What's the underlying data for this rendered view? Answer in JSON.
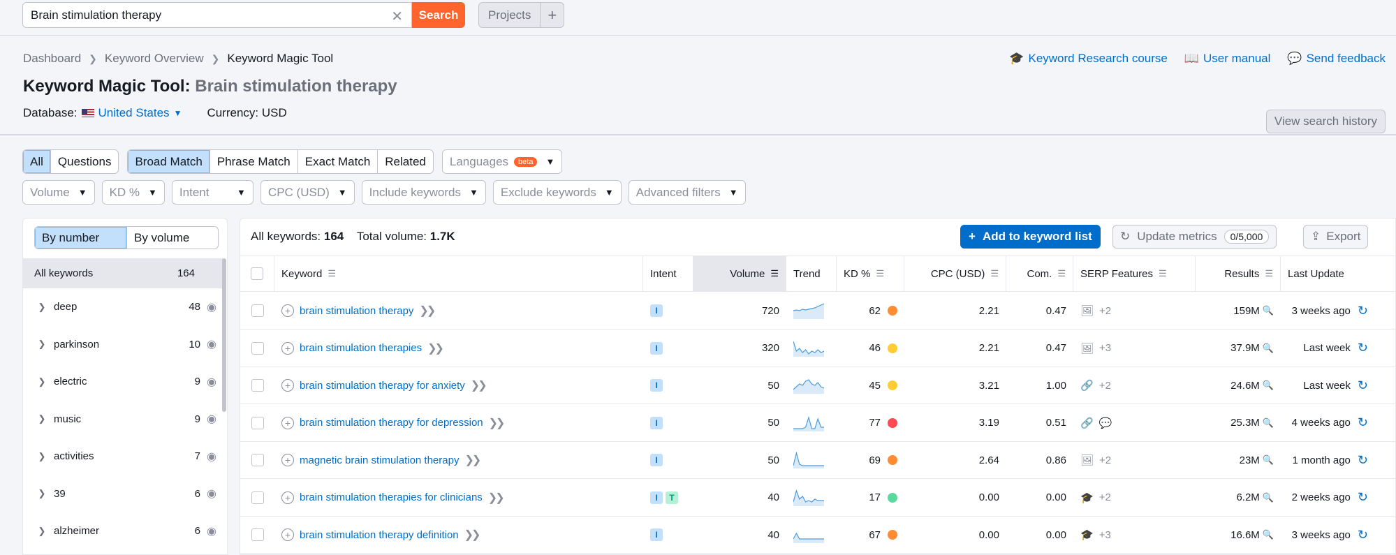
{
  "search": {
    "value": "Brain stimulation therapy",
    "button": "Search"
  },
  "projects": {
    "label": "Projects",
    "plus": "+"
  },
  "breadcrumb": [
    "Dashboard",
    "Keyword Overview",
    "Keyword Magic Tool"
  ],
  "title": {
    "tool": "Keyword Magic Tool:",
    "keyword": "Brain stimulation therapy"
  },
  "database": {
    "label": "Database:",
    "country": "United States",
    "currency": "Currency: USD"
  },
  "toplinks": {
    "course": "Keyword Research course",
    "manual": "User manual",
    "feedback": "Send feedback"
  },
  "view_history": "View search history",
  "tabs1": [
    "All",
    "Questions"
  ],
  "tabs2": [
    "Broad Match",
    "Phrase Match",
    "Exact Match",
    "Related"
  ],
  "languages": {
    "label": "Languages",
    "badge": "beta"
  },
  "filters": [
    "Volume",
    "KD %",
    "Intent",
    "CPC (USD)",
    "Include keywords",
    "Exclude keywords",
    "Advanced filters"
  ],
  "group_toggle": [
    "By number",
    "By volume"
  ],
  "all_keywords_group": {
    "label": "All keywords",
    "count": "164"
  },
  "groups": [
    {
      "name": "deep",
      "count": "48"
    },
    {
      "name": "parkinson",
      "count": "10"
    },
    {
      "name": "electric",
      "count": "9"
    },
    {
      "name": "music",
      "count": "9"
    },
    {
      "name": "activities",
      "count": "7"
    },
    {
      "name": "39",
      "count": "6"
    },
    {
      "name": "alzheimer",
      "count": "6"
    }
  ],
  "summary": {
    "all_label": "All keywords:",
    "all_value": "164",
    "vol_label": "Total volume:",
    "vol_value": "1.7K"
  },
  "actions": {
    "add": "Add to keyword list",
    "update": "Update metrics",
    "quota": "0/5,000",
    "export": "Export"
  },
  "columns": [
    "Keyword",
    "Intent",
    "Volume",
    "Trend",
    "KD %",
    "CPC (USD)",
    "Com.",
    "SERP Features",
    "Results",
    "Last Update"
  ],
  "colors": {
    "orange": "#ff8c33",
    "yellow": "#ffcc33",
    "red": "#ff4953",
    "green": "#59d99d",
    "link": "#006dca"
  },
  "rows": [
    {
      "keyword": "brain stimulation therapy",
      "intent": [
        "I"
      ],
      "volume": "720",
      "trend": [
        0.5,
        0.55,
        0.5,
        0.6,
        0.55,
        0.6,
        0.65,
        0.7,
        0.8,
        0.9,
        1.0
      ],
      "kd": "62",
      "kd_color": "orange",
      "cpc": "2.21",
      "com": "0.47",
      "serp_icon": "image-icon",
      "serp_extra": "+2",
      "results": "159M",
      "last": "3 weeks ago"
    },
    {
      "keyword": "brain stimulation therapies",
      "intent": [
        "I"
      ],
      "volume": "320",
      "trend": [
        1.0,
        0.3,
        0.5,
        0.2,
        0.4,
        0.1,
        0.3,
        0.2,
        0.4,
        0.2,
        0.3
      ],
      "kd": "46",
      "kd_color": "yellow",
      "cpc": "2.21",
      "com": "0.47",
      "serp_icon": "image-icon",
      "serp_extra": "+3",
      "results": "37.9M",
      "last": "Last week"
    },
    {
      "keyword": "brain stimulation therapy for anxiety",
      "intent": [
        "I"
      ],
      "volume": "50",
      "trend": [
        0.2,
        0.4,
        0.6,
        0.5,
        0.8,
        0.9,
        0.6,
        0.5,
        0.7,
        0.4,
        0.3
      ],
      "kd": "45",
      "kd_color": "yellow",
      "cpc": "3.21",
      "com": "1.00",
      "serp_icon": "link-icon",
      "serp_extra": "+2",
      "results": "24.6M",
      "last": "Last week"
    },
    {
      "keyword": "brain stimulation therapy for depression",
      "intent": [
        "I"
      ],
      "volume": "50",
      "trend": [
        0.1,
        0.1,
        0.1,
        0.1,
        0.2,
        0.9,
        0.1,
        0.1,
        0.8,
        0.2,
        0.2
      ],
      "kd": "77",
      "kd_color": "red",
      "cpc": "3.19",
      "com": "0.51",
      "serp_icon": "link-icon",
      "serp_extra": "faq-icon",
      "results": "25.3M",
      "last": "4 weeks ago"
    },
    {
      "keyword": "magnetic brain stimulation therapy",
      "intent": [
        "I"
      ],
      "volume": "50",
      "trend": [
        0.1,
        1.0,
        0.2,
        0.1,
        0.1,
        0.1,
        0.1,
        0.1,
        0.1,
        0.1,
        0.1
      ],
      "kd": "69",
      "kd_color": "orange",
      "cpc": "2.64",
      "com": "0.86",
      "serp_icon": "image-icon",
      "serp_extra": "+2",
      "results": "23M",
      "last": "1 month ago"
    },
    {
      "keyword": "brain stimulation therapies for clinicians",
      "intent": [
        "I",
        "T"
      ],
      "volume": "40",
      "trend": [
        0.2,
        1.0,
        0.4,
        0.6,
        0.2,
        0.3,
        0.2,
        0.4,
        0.3,
        0.3,
        0.3
      ],
      "kd": "17",
      "kd_color": "green",
      "cpc": "0.00",
      "com": "0.00",
      "serp_icon": "graduation-cap-icon",
      "serp_extra": "+2",
      "results": "6.2M",
      "last": "2 weeks ago"
    },
    {
      "keyword": "brain stimulation therapy definition",
      "intent": [
        "I"
      ],
      "volume": "40",
      "trend": [
        0.2,
        0.6,
        0.2,
        0.2,
        0.2,
        0.2,
        0.2,
        0.2,
        0.2,
        0.2,
        0.2
      ],
      "kd": "67",
      "kd_color": "orange",
      "cpc": "0.00",
      "com": "0.00",
      "serp_icon": "graduation-cap-icon",
      "serp_extra": "+3",
      "results": "16.6M",
      "last": "3 weeks ago"
    }
  ]
}
